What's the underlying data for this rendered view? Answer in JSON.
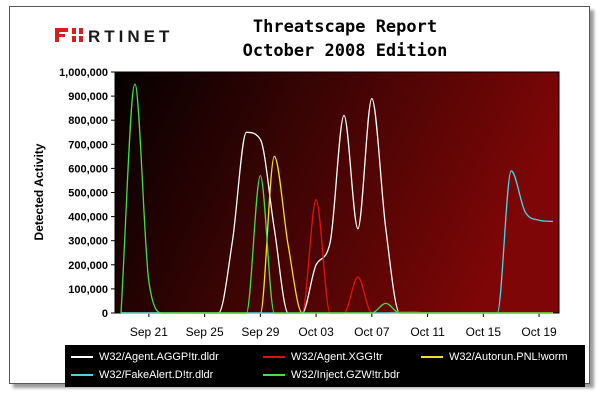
{
  "brand": {
    "logo_text": "FORTINET"
  },
  "report": {
    "title_line1": "Threatscape Report",
    "title_line2": "October 2008 Edition"
  },
  "chart_data": {
    "type": "line",
    "title": "Threatscape Report October 2008 Edition",
    "xlabel": "",
    "ylabel": "Detected Activity",
    "x": [
      "Sep 19",
      "Sep 20",
      "Sep 21",
      "Sep 22",
      "Sep 23",
      "Sep 24",
      "Sep 25",
      "Sep 26",
      "Sep 27",
      "Sep 28",
      "Sep 29",
      "Sep 30",
      "Oct 01",
      "Oct 02",
      "Oct 03",
      "Oct 04",
      "Oct 05",
      "Oct 06",
      "Oct 07",
      "Oct 08",
      "Oct 09",
      "Oct 10",
      "Oct 11",
      "Oct 12",
      "Oct 13",
      "Oct 14",
      "Oct 15",
      "Oct 16",
      "Oct 17",
      "Oct 18",
      "Oct 19",
      "Oct 20"
    ],
    "x_tick_labels": [
      "Sep 21",
      "Sep 25",
      "Sep 29",
      "Oct 03",
      "Oct 07",
      "Oct 11",
      "Oct 15",
      "Oct 19"
    ],
    "ylim": [
      0,
      1000000
    ],
    "y_ticks": [
      "0",
      "100,000",
      "200,000",
      "300,000",
      "400,000",
      "500,000",
      "600,000",
      "700,000",
      "800,000",
      "900,000",
      "1,000,000"
    ],
    "grid": false,
    "legend_position": "bottom",
    "series": [
      {
        "name": "W32/Agent.AGGP!tr.dldr",
        "color": "#ffffff",
        "values": [
          0,
          0,
          0,
          0,
          0,
          0,
          0,
          0,
          300000,
          750000,
          720000,
          350000,
          0,
          0,
          200000,
          290000,
          820000,
          350000,
          890000,
          350000,
          0,
          0,
          0,
          0,
          0,
          0,
          0,
          0,
          0,
          0,
          0,
          0
        ]
      },
      {
        "name": "W32/Agent.XGG!tr",
        "color": "#e01010",
        "values": [
          0,
          0,
          0,
          0,
          0,
          0,
          0,
          0,
          0,
          0,
          0,
          0,
          0,
          0,
          470000,
          0,
          0,
          150000,
          0,
          0,
          5000,
          5000,
          0,
          0,
          0,
          0,
          0,
          0,
          0,
          0,
          0,
          0
        ]
      },
      {
        "name": "W32/Autorun.PNL!worm",
        "color": "#f0e020",
        "values": [
          0,
          0,
          0,
          0,
          0,
          0,
          0,
          0,
          0,
          0,
          0,
          650000,
          280000,
          0,
          0,
          0,
          0,
          0,
          0,
          0,
          0,
          0,
          0,
          0,
          0,
          0,
          0,
          0,
          0,
          0,
          0,
          0
        ]
      },
      {
        "name": "W32/FakeAlert.D!tr.dldr",
        "color": "#40d8e8",
        "values": [
          0,
          0,
          0,
          0,
          0,
          0,
          0,
          0,
          0,
          0,
          0,
          0,
          0,
          0,
          0,
          0,
          0,
          0,
          0,
          0,
          0,
          0,
          0,
          0,
          0,
          0,
          0,
          0,
          590000,
          420000,
          385000,
          380000
        ]
      },
      {
        "name": "W32/Inject.GZW!tr.bdr",
        "color": "#40e040",
        "values": [
          0,
          950000,
          130000,
          0,
          0,
          0,
          0,
          0,
          0,
          0,
          570000,
          0,
          0,
          0,
          0,
          0,
          0,
          0,
          0,
          40000,
          0,
          0,
          0,
          0,
          0,
          0,
          0,
          0,
          0,
          0,
          0,
          0
        ]
      }
    ]
  }
}
